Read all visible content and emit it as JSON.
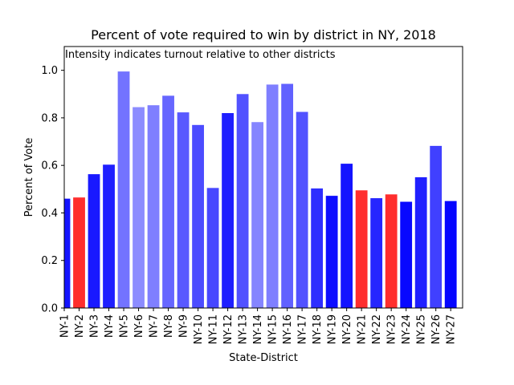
{
  "chart_data": {
    "type": "bar",
    "title": "Percent of vote required to win by district in NY, 2018",
    "annotation": "Intensity indicates turnout relative to other districts",
    "xlabel": "State-District",
    "ylabel": "Percent of Vote",
    "ylim": [
      0,
      1.1
    ],
    "yticks": [
      "0.0",
      "0.2",
      "0.4",
      "0.6",
      "0.8",
      "1.0"
    ],
    "grid": false,
    "categories": [
      "NY-1",
      "NY-2",
      "NY-3",
      "NY-4",
      "NY-5",
      "NY-6",
      "NY-7",
      "NY-8",
      "NY-9",
      "NY-10",
      "NY-11",
      "NY-12",
      "NY-13",
      "NY-14",
      "NY-15",
      "NY-16",
      "NY-17",
      "NY-18",
      "NY-19",
      "NY-20",
      "NY-21",
      "NY-22",
      "NY-23",
      "NY-24",
      "NY-25",
      "NY-26",
      "NY-27"
    ],
    "values": [
      0.46,
      0.465,
      0.563,
      0.603,
      0.995,
      0.845,
      0.853,
      0.893,
      0.823,
      0.77,
      0.505,
      0.82,
      0.9,
      0.782,
      0.94,
      0.943,
      0.825,
      0.503,
      0.472,
      0.607,
      0.495,
      0.462,
      0.478,
      0.447,
      0.55,
      0.682,
      0.45
    ],
    "bar_colors": [
      "blue",
      "red",
      "blue",
      "blue",
      "blue",
      "blue",
      "blue",
      "blue",
      "blue",
      "blue",
      "blue",
      "blue",
      "blue",
      "blue",
      "blue",
      "blue",
      "blue",
      "blue",
      "blue",
      "blue",
      "red",
      "blue",
      "red",
      "blue",
      "blue",
      "blue",
      "blue"
    ],
    "turnout_intensity": [
      0.92,
      0.82,
      0.9,
      0.88,
      0.55,
      0.45,
      0.5,
      0.6,
      0.65,
      0.7,
      0.72,
      0.88,
      0.68,
      0.48,
      0.5,
      0.62,
      0.68,
      0.82,
      0.95,
      0.92,
      0.82,
      0.85,
      0.82,
      0.97,
      0.88,
      0.75,
      0.98
    ],
    "colors": {
      "blue": "#0000ff",
      "red": "#ff0000",
      "axes": "#000000"
    }
  }
}
